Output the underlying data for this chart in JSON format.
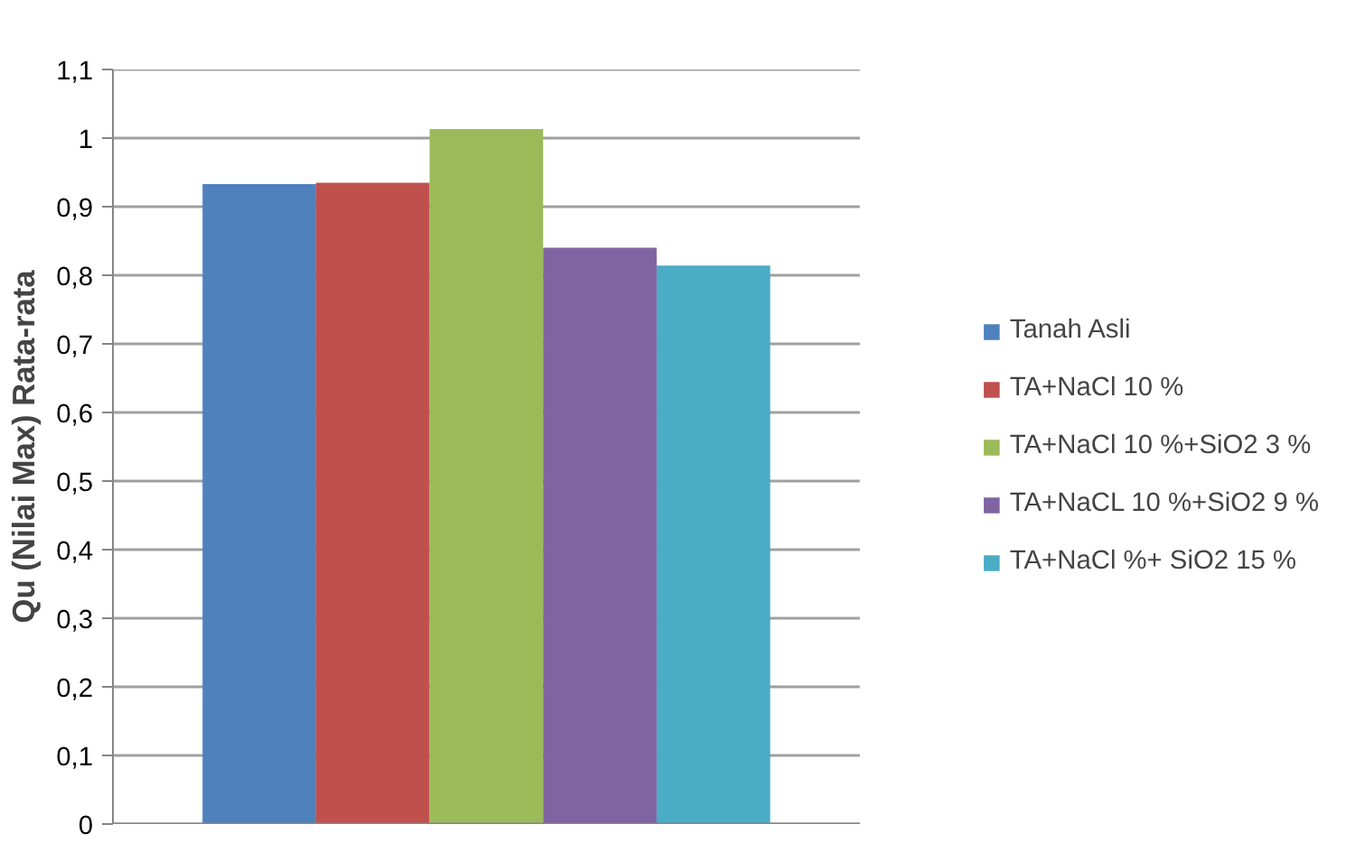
{
  "chart_data": {
    "type": "bar",
    "ylabel": "Qu (Nilai Max) Rata-rata",
    "categories": [
      null
    ],
    "series": [
      {
        "name": "Tanah Asli",
        "color": "#4f81bd",
        "values": [
          0.933
        ]
      },
      {
        "name": "TA+NaCl 10 %",
        "color": "#c0504d",
        "values": [
          0.935
        ]
      },
      {
        "name": "TA+NaCl 10 %+SiO2 3 %",
        "color": "#9bbb59",
        "values": [
          1.013
        ]
      },
      {
        "name": "TA+NaCL 10 %+SiO2 9 %",
        "color": "#8064a2",
        "values": [
          0.84
        ]
      },
      {
        "name": "TA+NaCl %+ SiO2 15 %",
        "color": "#4bacc6",
        "values": [
          0.814
        ]
      }
    ],
    "ylim": [
      0,
      1.1
    ],
    "yticks": [
      {
        "value": 0,
        "label": "0"
      },
      {
        "value": 0.1,
        "label": "0,1"
      },
      {
        "value": 0.2,
        "label": "0,2"
      },
      {
        "value": 0.3,
        "label": "0,3"
      },
      {
        "value": 0.4,
        "label": "0,4"
      },
      {
        "value": 0.5,
        "label": "0,5"
      },
      {
        "value": 0.6,
        "label": "0,6"
      },
      {
        "value": 0.7,
        "label": "0,7"
      },
      {
        "value": 0.8,
        "label": "0,8"
      },
      {
        "value": 0.9,
        "label": "0,9"
      },
      {
        "value": 1,
        "label": "1"
      },
      {
        "value": 1.1,
        "label": "1,1"
      }
    ],
    "grid": "y",
    "legend": "right"
  }
}
